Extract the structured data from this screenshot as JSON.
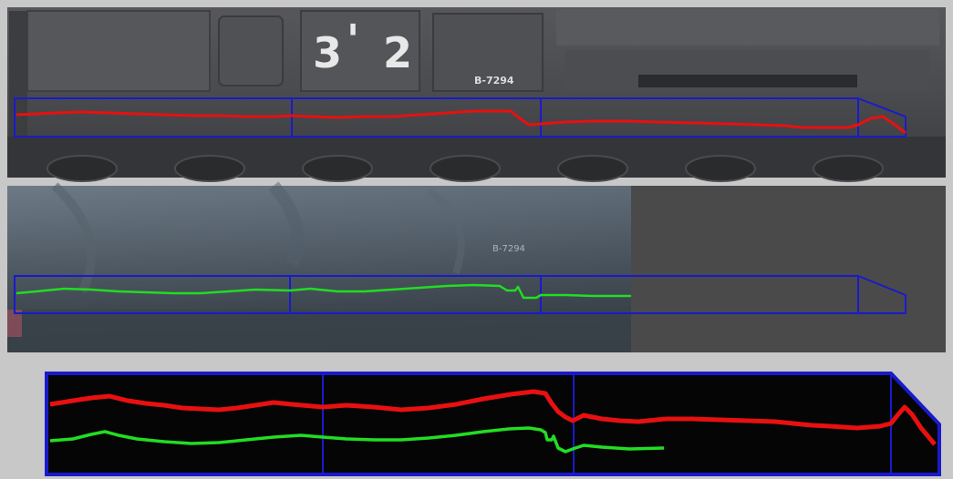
{
  "top_panel": {
    "hull_number_left": "3",
    "hull_number_apostrophe": "'",
    "hull_number_right": "2",
    "hull_code": "B-7294"
  },
  "middle_panel": {
    "faint_code": "B-7294"
  },
  "colors": {
    "box_outline": "#1a1acc",
    "profile_red": "#e81010",
    "profile_green": "#22dd22",
    "divider_bg": "#c8c8c8",
    "middle_empty_bg": "#4a4a4a"
  }
}
